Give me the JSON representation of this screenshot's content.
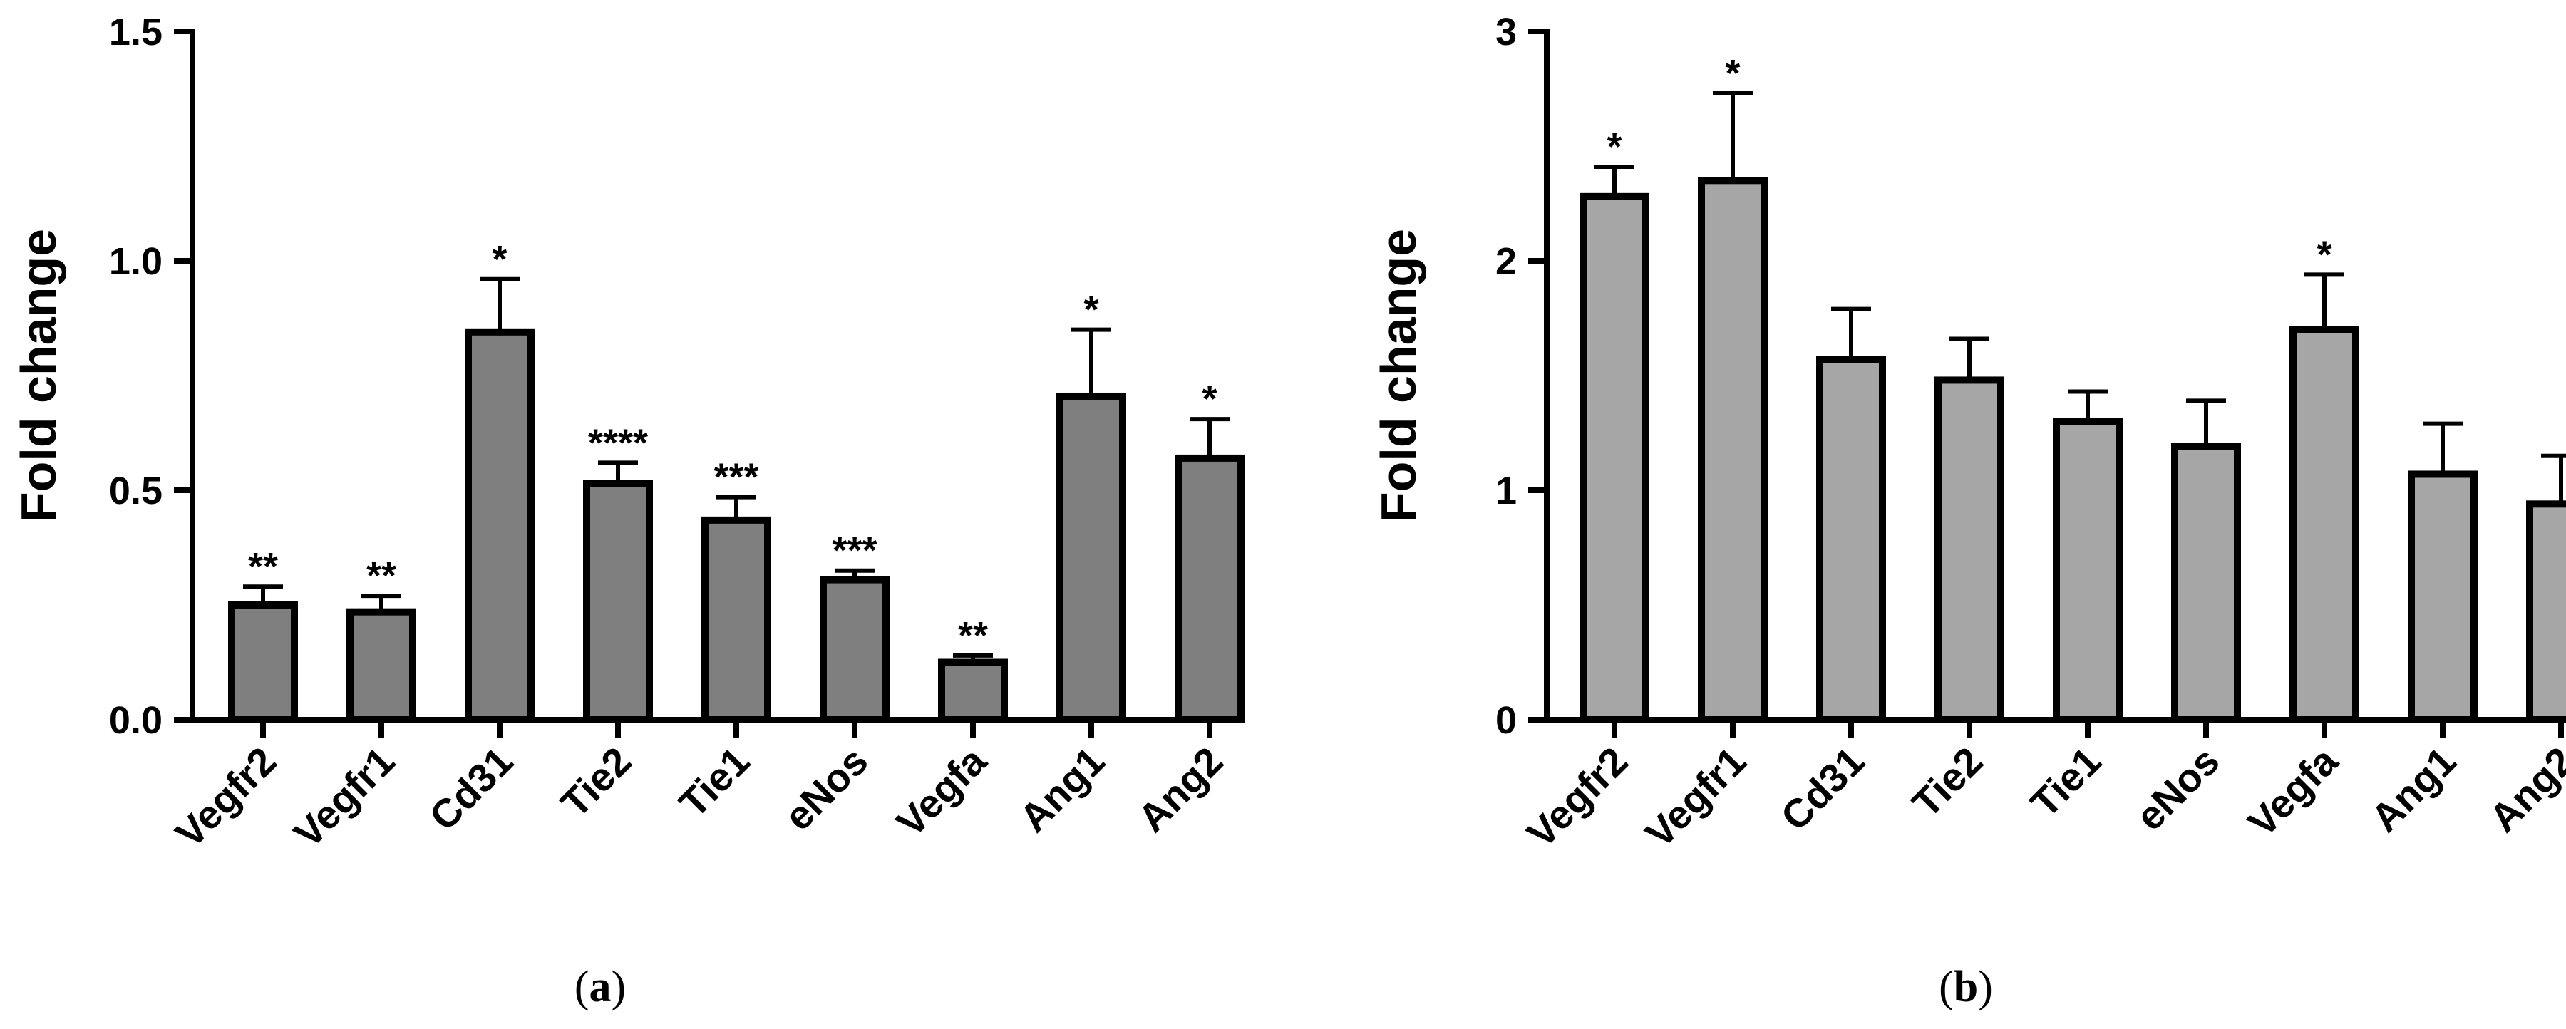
{
  "chart_data": [
    {
      "type": "bar",
      "panel_caption": "a",
      "ylabel": "Fold change",
      "ylim": [
        0,
        1.5
      ],
      "yticks": [
        "0.0",
        "0.5",
        "1.0",
        "1.5"
      ],
      "categories": [
        "Vegfr2",
        "Vegfr1",
        "Cd31",
        "Tie2",
        "Tie1",
        "eNos",
        "Vegfa",
        "Ang1",
        "Ang2"
      ],
      "values": [
        0.25,
        0.235,
        0.845,
        0.515,
        0.435,
        0.305,
        0.125,
        0.705,
        0.57
      ],
      "errors": [
        0.04,
        0.035,
        0.115,
        0.045,
        0.05,
        0.02,
        0.015,
        0.145,
        0.085
      ],
      "significance": [
        "**",
        "**",
        "*",
        "****",
        "***",
        "***",
        "**",
        "*",
        "*"
      ],
      "bar_color": "#7f7f7f",
      "grid": false
    },
    {
      "type": "bar",
      "panel_caption": "b",
      "ylabel": "Fold change",
      "ylim": [
        0,
        3
      ],
      "yticks": [
        "0",
        "1",
        "2",
        "3"
      ],
      "categories": [
        "Vegfr2",
        "Vegfr1",
        "Cd31",
        "Tie2",
        "Tie1",
        "eNos",
        "Vegfa",
        "Ang1",
        "Ang2"
      ],
      "values": [
        2.28,
        2.35,
        1.57,
        1.48,
        1.3,
        1.19,
        1.7,
        1.07,
        0.94
      ],
      "errors": [
        0.13,
        0.38,
        0.22,
        0.18,
        0.13,
        0.2,
        0.24,
        0.22,
        0.21
      ],
      "significance": [
        "*",
        "*",
        "",
        "",
        "",
        "",
        "*",
        "",
        ""
      ],
      "bar_color": "#a6a6a6",
      "grid": false
    }
  ]
}
